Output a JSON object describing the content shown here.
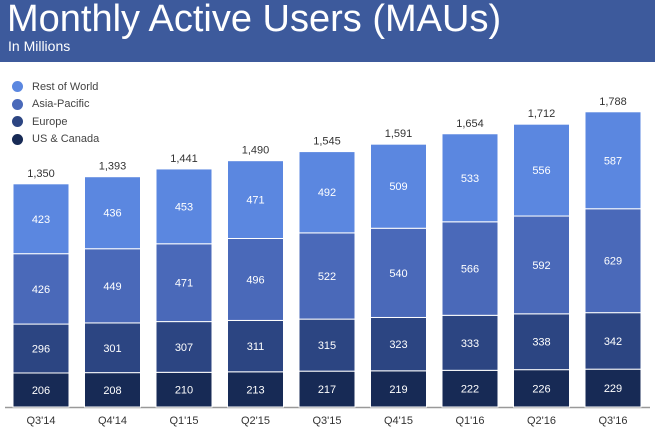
{
  "header": {
    "title": "Monthly Active Users (MAUs)",
    "subtitle": "In Millions"
  },
  "chart_data": {
    "type": "stacked-bar",
    "categories": [
      "Q3'14",
      "Q4'14",
      "Q1'15",
      "Q2'15",
      "Q3'15",
      "Q4'15",
      "Q1'16",
      "Q2'16",
      "Q3'16"
    ],
    "series": [
      {
        "name": "US & Canada",
        "color": "#172a55",
        "values": [
          206,
          208,
          210,
          213,
          217,
          219,
          222,
          226,
          229
        ]
      },
      {
        "name": "Europe",
        "color": "#2c4582",
        "values": [
          296,
          301,
          307,
          311,
          315,
          323,
          333,
          338,
          342
        ]
      },
      {
        "name": "Asia-Pacific",
        "color": "#4a69b9",
        "values": [
          426,
          449,
          471,
          496,
          522,
          540,
          566,
          592,
          629
        ]
      },
      {
        "name": "Rest of World",
        "color": "#5b87e0",
        "values": [
          423,
          436,
          453,
          471,
          492,
          509,
          533,
          556,
          587
        ]
      }
    ],
    "totals": [
      "1,350",
      "1,393",
      "1,441",
      "1,490",
      "1,545",
      "1,591",
      "1,654",
      "1,712",
      "1,788"
    ],
    "legend_position": "top-left",
    "grid": false
  }
}
